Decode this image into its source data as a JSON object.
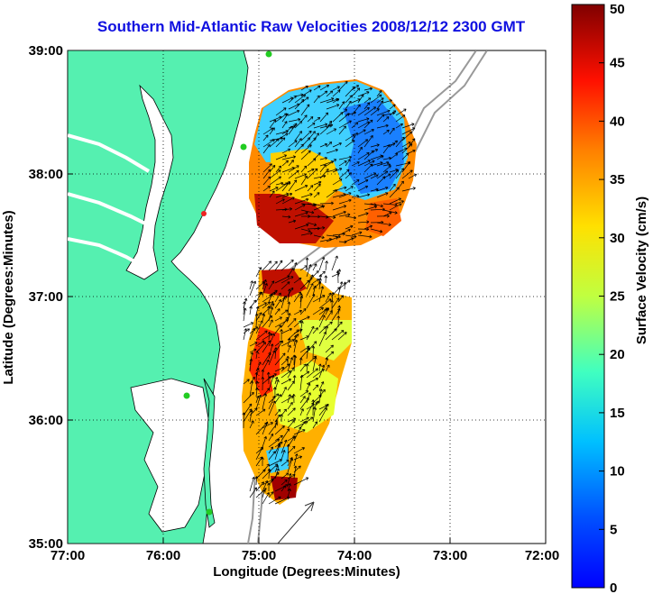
{
  "title": "Southern Mid-Atlantic Raw Velocities 2008/12/12 2300 GMT",
  "xlabel": "Longitude (Degrees:Minutes)",
  "ylabel": "Latitude (Degrees:Minutes)",
  "x_ticks": [
    "77:00",
    "76:00",
    "75:00",
    "74:00",
    "73:00",
    "72:00"
  ],
  "y_ticks": [
    "39:00",
    "38:00",
    "37:00",
    "36:00",
    "35:00"
  ],
  "colorbar": {
    "label": "Surface Velocity (cm/s)",
    "ticks": [
      "0",
      "5",
      "10",
      "15",
      "20",
      "25",
      "30",
      "35",
      "40",
      "45",
      "50"
    ],
    "range": [
      0,
      50
    ],
    "colormap": "jet"
  },
  "colors": {
    "land": "#55f0b0",
    "coast_line": "#000000",
    "bathymetry": "#999999",
    "grid": "#000000",
    "station": "#22cc22",
    "station_alt": "#ee2222",
    "title": "#1010e0"
  },
  "map": {
    "lon_range": [
      -77,
      -72
    ],
    "lat_range": [
      35,
      39
    ],
    "grid": "dotted",
    "scale_vector": "present"
  }
}
